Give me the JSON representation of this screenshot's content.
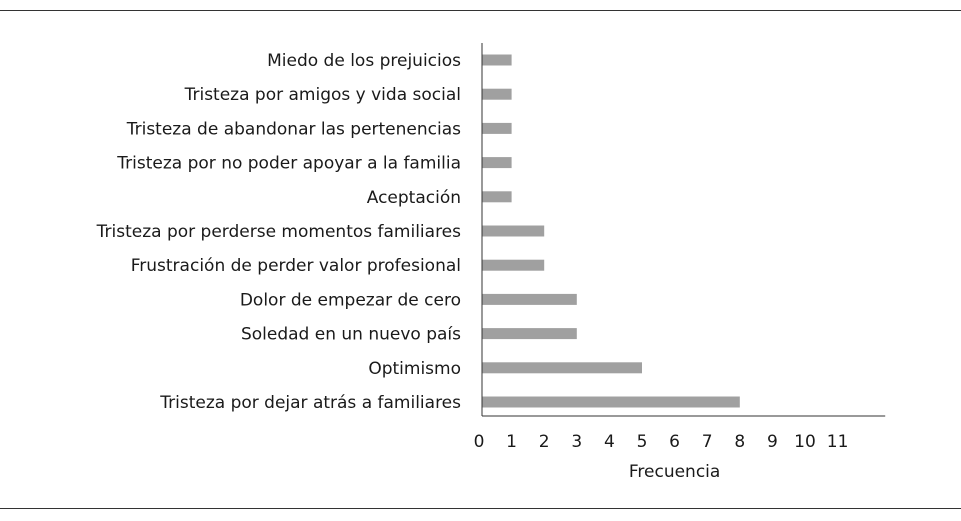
{
  "chart_data": {
    "type": "bar",
    "orientation": "horizontal",
    "categories": [
      "Miedo de los prejuicios",
      "Tristeza por amigos y vida social",
      "Tristeza de abandonar las pertenencias",
      "Tristeza por no poder apoyar a la familia",
      "Aceptación",
      "Tristeza por perderse momentos familiares",
      "Frustración de perder valor profesional",
      "Dolor de empezar de cero",
      "Soledad en un nuevo país",
      "Optimismo",
      "Tristeza por dejar atrás a familiares"
    ],
    "values": [
      1,
      1,
      1,
      1,
      1,
      2,
      2,
      3,
      3,
      5,
      8
    ],
    "xlabel": "Frecuencia",
    "ylabel": "",
    "xlim": [
      0,
      12
    ],
    "xticks": [
      "0",
      "1",
      "2",
      "3",
      "4",
      "5",
      "6",
      "7",
      "8",
      "9",
      "10",
      "11"
    ],
    "grid": false,
    "bar_color": "#a0a0a0"
  }
}
